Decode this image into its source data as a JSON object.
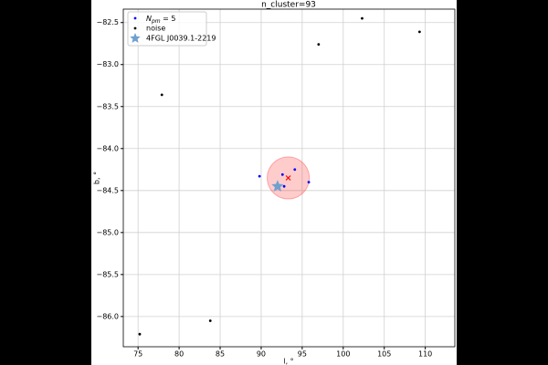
{
  "chart_data": {
    "type": "scatter",
    "title": "n_cluster=93",
    "xlabel": "l, °",
    "ylabel": "b, °",
    "xlim": [
      73.2,
      113.6
    ],
    "ylim": [
      -86.36,
      -82.34
    ],
    "xticks": [
      75,
      80,
      85,
      90,
      95,
      100,
      105,
      110
    ],
    "yticks": [
      {
        "value": -82.5,
        "label": "−82.5"
      },
      {
        "value": -83.0,
        "label": "−83.0"
      },
      {
        "value": -83.5,
        "label": "−83.5"
      },
      {
        "value": -84.0,
        "label": "−84.0"
      },
      {
        "value": -84.5,
        "label": "−84.5"
      },
      {
        "value": -85.0,
        "label": "−85.0"
      },
      {
        "value": -85.5,
        "label": "−85.5"
      },
      {
        "value": -86.0,
        "label": "−86.0"
      }
    ],
    "grid": true,
    "legend": "upper left",
    "series": [
      {
        "name": [
          "N",
          "pm",
          " = 5"
        ],
        "color": "#0000ff",
        "marker": "dot",
        "x": [
          89.8,
          92.6,
          94.1,
          95.8,
          92.8
        ],
        "y": [
          -84.33,
          -84.31,
          -84.25,
          -84.4,
          -84.45
        ]
      },
      {
        "name": "noise",
        "color": "#000000",
        "marker": "dot",
        "x": [
          102.3,
          109.3,
          97.0,
          77.9,
          83.8,
          75.2
        ],
        "y": [
          -82.45,
          -82.61,
          -82.76,
          -83.36,
          -86.05,
          -86.21
        ]
      },
      {
        "name": "4FGL J0039.1-2219",
        "color": "#6fa0d0",
        "marker": "star",
        "x": [
          92.0
        ],
        "y": [
          -84.45
        ]
      }
    ],
    "centroid": {
      "x": 93.3,
      "y": -84.35,
      "color": "#ff0000",
      "radius": 0.25
    }
  }
}
